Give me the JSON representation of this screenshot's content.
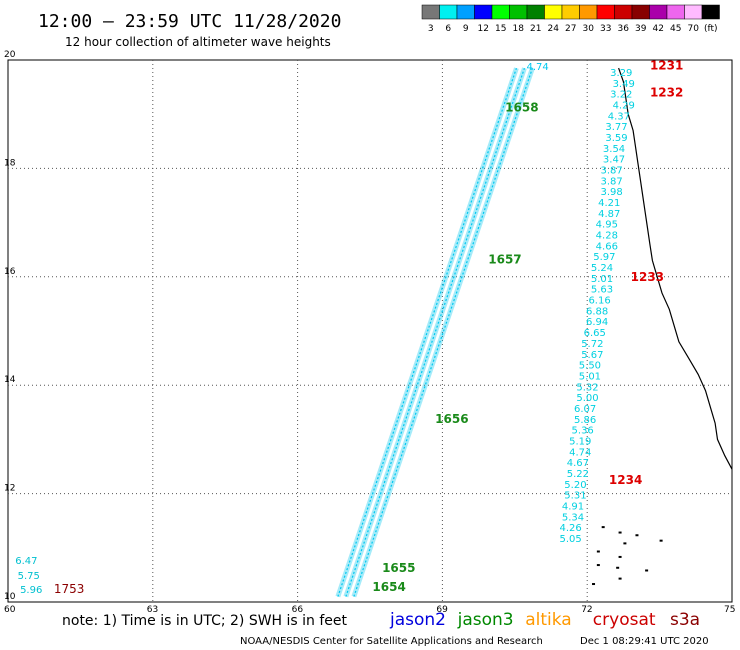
{
  "header": {
    "title": "12:00 – 23:59 UTC 11/28/2020",
    "subtitle": "12 hour collection of altimeter wave heights"
  },
  "colorbar": {
    "unit": "(ft)",
    "bins": [
      {
        "label": "3",
        "color": "#777777"
      },
      {
        "label": "6",
        "color": "#00f0f0"
      },
      {
        "label": "9",
        "color": "#00a0ff"
      },
      {
        "label": "12",
        "color": "#0000ff"
      },
      {
        "label": "15",
        "color": "#00ff00"
      },
      {
        "label": "18",
        "color": "#00c000"
      },
      {
        "label": "21",
        "color": "#008000"
      },
      {
        "label": "24",
        "color": "#ffff00"
      },
      {
        "label": "27",
        "color": "#ffcc00"
      },
      {
        "label": "30",
        "color": "#ff9900"
      },
      {
        "label": "33",
        "color": "#ff0000"
      },
      {
        "label": "36",
        "color": "#cc0000"
      },
      {
        "label": "39",
        "color": "#880000"
      },
      {
        "label": "42",
        "color": "#aa00aa"
      },
      {
        "label": "45",
        "color": "#ee66ee"
      },
      {
        "label": "70",
        "color": "#ffbbff"
      },
      {
        "label": "(ft)",
        "color": "#000000"
      }
    ]
  },
  "footer": {
    "note": "note: 1) Time is in UTC; 2) SWH is in feet",
    "legend": [
      {
        "name": "jason2",
        "color": "#0000dd"
      },
      {
        "name": "jason3",
        "color": "#008800"
      },
      {
        "name": "altika",
        "color": "#ff9900"
      },
      {
        "name": "cryosat",
        "color": "#cc0000"
      },
      {
        "name": "s3a",
        "color": "#8b0000"
      }
    ],
    "credit": "NOAA/NESDIS Center for Satellite Applications and Research",
    "timestamp": "Dec  1 08:29:41 UTC 2020"
  },
  "chart_data": {
    "type": "scatter",
    "xlim": [
      60,
      75
    ],
    "ylim": [
      10,
      20
    ],
    "xticks": [
      60,
      63,
      66,
      69,
      72,
      75
    ],
    "yticks": [
      10,
      12,
      14,
      16,
      18,
      20
    ],
    "grid": true,
    "coastline": [
      [
        72.65,
        19.85
      ],
      [
        72.75,
        19.6
      ],
      [
        72.8,
        19.3
      ],
      [
        72.85,
        19.0
      ],
      [
        72.95,
        18.7
      ],
      [
        73.0,
        18.4
      ],
      [
        73.05,
        18.1
      ],
      [
        73.1,
        17.8
      ],
      [
        73.15,
        17.5
      ],
      [
        73.2,
        17.2
      ],
      [
        73.25,
        16.9
      ],
      [
        73.3,
        16.6
      ],
      [
        73.35,
        16.3
      ],
      [
        73.45,
        16.0
      ],
      [
        73.55,
        15.7
      ],
      [
        73.7,
        15.4
      ],
      [
        73.8,
        15.1
      ],
      [
        73.9,
        14.8
      ],
      [
        74.1,
        14.5
      ],
      [
        74.3,
        14.2
      ],
      [
        74.45,
        13.9
      ],
      [
        74.55,
        13.6
      ],
      [
        74.65,
        13.3
      ],
      [
        74.7,
        13.0
      ],
      [
        74.85,
        12.7
      ],
      [
        75.0,
        12.45
      ]
    ],
    "islands": [
      [
        72.65,
        11.3
      ],
      [
        72.3,
        11.4
      ],
      [
        72.75,
        11.1
      ],
      [
        72.2,
        10.95
      ],
      [
        72.65,
        10.85
      ],
      [
        72.2,
        10.7
      ],
      [
        72.6,
        10.65
      ],
      [
        73.0,
        11.25
      ],
      [
        73.5,
        11.15
      ],
      [
        73.2,
        10.6
      ],
      [
        72.65,
        10.45
      ],
      [
        72.1,
        10.35
      ]
    ],
    "ground_track": {
      "start": [
        67.0,
        10.1
      ],
      "end": [
        70.7,
        19.85
      ],
      "color": "#00c8f0",
      "label_start": "4.74",
      "times": [
        {
          "label": "1658",
          "x": 70.3,
          "y": 19.05
        },
        {
          "label": "1657",
          "x": 69.95,
          "y": 16.25
        },
        {
          "label": "1656",
          "x": 68.85,
          "y": 13.3
        },
        {
          "label": "1655",
          "x": 67.75,
          "y": 10.55
        },
        {
          "label": "1654",
          "x": 67.55,
          "y": 10.2
        }
      ]
    },
    "near_coast_track": {
      "color": "#00d0e0",
      "values": [
        {
          "x": 72.6,
          "y": 19.78,
          "v": "3.29"
        },
        {
          "x": 72.65,
          "y": 19.58,
          "v": "3.49"
        },
        {
          "x": 72.6,
          "y": 19.38,
          "v": "3.22"
        },
        {
          "x": 72.65,
          "y": 19.18,
          "v": "4.29"
        },
        {
          "x": 72.55,
          "y": 18.98,
          "v": "4.37"
        },
        {
          "x": 72.5,
          "y": 18.78,
          "v": "3.77"
        },
        {
          "x": 72.5,
          "y": 18.58,
          "v": "3.59"
        },
        {
          "x": 72.45,
          "y": 18.38,
          "v": "3.54"
        },
        {
          "x": 72.45,
          "y": 18.18,
          "v": "3.47"
        },
        {
          "x": 72.4,
          "y": 17.98,
          "v": "3.87"
        },
        {
          "x": 72.4,
          "y": 17.78,
          "v": "3.87"
        },
        {
          "x": 72.4,
          "y": 17.58,
          "v": "3.98"
        },
        {
          "x": 72.35,
          "y": 17.38,
          "v": "4.21"
        },
        {
          "x": 72.35,
          "y": 17.18,
          "v": "4.87"
        },
        {
          "x": 72.3,
          "y": 16.98,
          "v": "4.95"
        },
        {
          "x": 72.3,
          "y": 16.78,
          "v": "4.28"
        },
        {
          "x": 72.3,
          "y": 16.58,
          "v": "4.66"
        },
        {
          "x": 72.25,
          "y": 16.38,
          "v": "5.97"
        },
        {
          "x": 72.2,
          "y": 16.18,
          "v": "5.24"
        },
        {
          "x": 72.2,
          "y": 15.98,
          "v": "5.01"
        },
        {
          "x": 72.2,
          "y": 15.78,
          "v": "5.63"
        },
        {
          "x": 72.15,
          "y": 15.58,
          "v": "6.16"
        },
        {
          "x": 72.1,
          "y": 15.38,
          "v": "6.88"
        },
        {
          "x": 72.1,
          "y": 15.18,
          "v": "6.94"
        },
        {
          "x": 72.05,
          "y": 14.98,
          "v": "6.65"
        },
        {
          "x": 72.0,
          "y": 14.78,
          "v": "5.72"
        },
        {
          "x": 72.0,
          "y": 14.58,
          "v": "5.67"
        },
        {
          "x": 71.95,
          "y": 14.38,
          "v": "5.50"
        },
        {
          "x": 71.95,
          "y": 14.18,
          "v": "5.01"
        },
        {
          "x": 71.9,
          "y": 13.98,
          "v": "5.32"
        },
        {
          "x": 71.9,
          "y": 13.78,
          "v": "5.00"
        },
        {
          "x": 71.85,
          "y": 13.58,
          "v": "6.07"
        },
        {
          "x": 71.85,
          "y": 13.38,
          "v": "5.86"
        },
        {
          "x": 71.8,
          "y": 13.18,
          "v": "5.36"
        },
        {
          "x": 71.75,
          "y": 12.98,
          "v": "5.19"
        },
        {
          "x": 71.75,
          "y": 12.78,
          "v": "4.74"
        },
        {
          "x": 71.7,
          "y": 12.58,
          "v": "4.67"
        },
        {
          "x": 71.7,
          "y": 12.38,
          "v": "5.22"
        },
        {
          "x": 71.65,
          "y": 12.18,
          "v": "5.20"
        },
        {
          "x": 71.65,
          "y": 11.98,
          "v": "5.31"
        },
        {
          "x": 71.6,
          "y": 11.78,
          "v": "4.91"
        },
        {
          "x": 71.6,
          "y": 11.58,
          "v": "5.34"
        },
        {
          "x": 71.55,
          "y": 11.38,
          "v": "4.26"
        },
        {
          "x": 71.55,
          "y": 11.18,
          "v": "5.05"
        }
      ]
    },
    "time_labels_red": [
      {
        "label": "1231",
        "x": 73.3,
        "y": 19.9
      },
      {
        "label": "1232",
        "x": 73.3,
        "y": 19.4
      },
      {
        "label": "1233",
        "x": 72.9,
        "y": 16.0
      },
      {
        "label": "1234",
        "x": 72.45,
        "y": 12.25
      }
    ],
    "left_values": [
      {
        "v": "6.47",
        "x": 60.15,
        "y": 10.7
      },
      {
        "v": "5.75",
        "x": 60.2,
        "y": 10.42
      },
      {
        "v": "5.96",
        "x": 60.25,
        "y": 10.17
      }
    ],
    "left_time": {
      "label": "1753",
      "x": 60.95,
      "y": 10.17
    }
  }
}
